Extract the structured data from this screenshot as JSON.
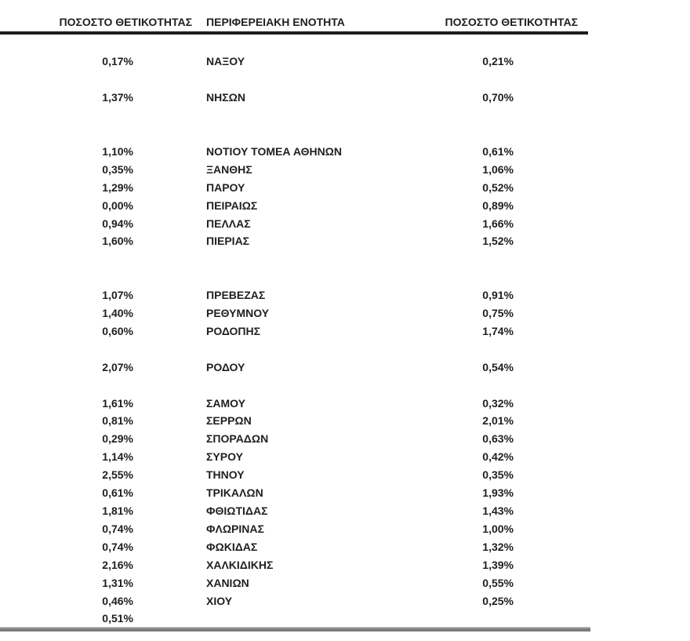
{
  "table": {
    "headers": [
      {
        "label": "ΠΟΣΟΣΤΟ ΘΕΤΙΚΟΤΗΤΑΣ"
      },
      {
        "label": "ΠΕΡΙΦΕΡΕΙΑΚΗ ΕΝΟΤΗΤΑ"
      },
      {
        "label": "ΠΟΣΟΣΤΟ ΘΕΤΙΚΟΤΗΤΑΣ"
      }
    ],
    "rows": [
      {
        "left": "",
        "region": "",
        "right": ""
      },
      {
        "left": "0,17%",
        "region": "ΝΑΞΟΥ",
        "right": "0,21%"
      },
      {
        "left": "",
        "region": "",
        "right": ""
      },
      {
        "left": "1,37%",
        "region": "ΝΗΣΩΝ",
        "right": "0,70%"
      },
      {
        "left": "",
        "region": "",
        "right": ""
      },
      {
        "left": "",
        "region": "",
        "right": ""
      },
      {
        "left": "1,10%",
        "region": "ΝΟΤΙΟΥ ΤΟΜΕΑ ΑΘΗΝΩΝ",
        "right": "0,61%"
      },
      {
        "left": "0,35%",
        "region": "ΞΑΝΘΗΣ",
        "right": "1,06%"
      },
      {
        "left": "1,29%",
        "region": "ΠΑΡΟΥ",
        "right": "0,52%"
      },
      {
        "left": "0,00%",
        "region": "ΠΕΙΡΑΙΩΣ",
        "right": "0,89%"
      },
      {
        "left": "0,94%",
        "region": "ΠΕΛΛΑΣ",
        "right": "1,66%"
      },
      {
        "left": "1,60%",
        "region": "ΠΙΕΡΙΑΣ",
        "right": "1,52%"
      },
      {
        "left": "",
        "region": "",
        "right": ""
      },
      {
        "left": "",
        "region": "",
        "right": ""
      },
      {
        "left": "1,07%",
        "region": "ΠΡΕΒΕΖΑΣ",
        "right": "0,91%"
      },
      {
        "left": "1,40%",
        "region": "ΡΕΘΥΜΝΟΥ",
        "right": "0,75%"
      },
      {
        "left": "0,60%",
        "region": "ΡΟΔΟΠΗΣ",
        "right": "1,74%"
      },
      {
        "left": "",
        "region": "",
        "right": ""
      },
      {
        "left": "2,07%",
        "region": "ΡΟΔΟΥ",
        "right": "0,54%"
      },
      {
        "left": "",
        "region": "",
        "right": ""
      },
      {
        "left": "1,61%",
        "region": "ΣΑΜΟΥ",
        "right": "0,32%"
      },
      {
        "left": "0,81%",
        "region": "ΣΕΡΡΩΝ",
        "right": "2,01%"
      },
      {
        "left": "0,29%",
        "region": "ΣΠΟΡΑΔΩΝ",
        "right": "0,63%"
      },
      {
        "left": "1,14%",
        "region": "ΣΥΡΟΥ",
        "right": "0,42%"
      },
      {
        "left": "2,55%",
        "region": "ΤΗΝΟΥ",
        "right": "0,35%"
      },
      {
        "left": "0,61%",
        "region": "ΤΡΙΚΑΛΩΝ",
        "right": "1,93%"
      },
      {
        "left": "1,81%",
        "region": "ΦΘΙΩΤΙΔΑΣ",
        "right": "1,43%"
      },
      {
        "left": "0,74%",
        "region": "ΦΛΩΡΙΝΑΣ",
        "right": "1,00%"
      },
      {
        "left": "0,74%",
        "region": "ΦΩΚΙΔΑΣ",
        "right": "1,32%"
      },
      {
        "left": "2,16%",
        "region": "ΧΑΛΚΙΔΙΚΗΣ",
        "right": "1,39%"
      },
      {
        "left": "1,31%",
        "region": "ΧΑΝΙΩΝ",
        "right": "0,55%"
      },
      {
        "left": "0,46%",
        "region": "ΧΙΟΥ",
        "right": "0,25%"
      },
      {
        "left": "0,51%",
        "region": "",
        "right": ""
      }
    ]
  }
}
